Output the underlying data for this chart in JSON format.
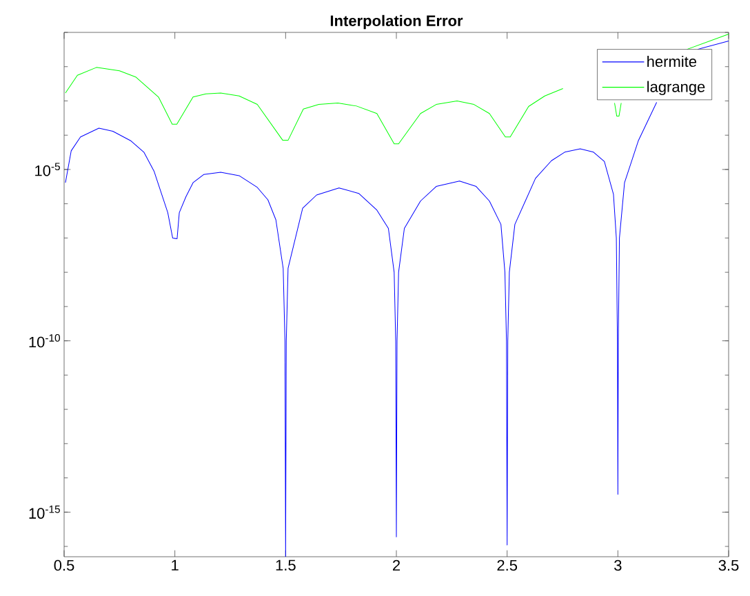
{
  "chart_data": {
    "type": "line",
    "title": "Interpolation Error",
    "log": "y",
    "legend": "top right",
    "xlim": [
      0.5,
      3.5
    ],
    "xticks": [
      0.5,
      1,
      1.5,
      2,
      2.5,
      3,
      3.5
    ],
    "ylim": [
      5e-17,
      0.1
    ],
    "yticks": [
      {
        "value": 1e-15,
        "label": "10$^{-15}$"
      },
      {
        "value": 1e-10,
        "label": "10$^{-10}$"
      },
      {
        "value": 1e-05,
        "label": "10$^{-5}$"
      }
    ],
    "series": [
      {
        "name": "hermite",
        "color": "#0000ff",
        "x": [
          0.506,
          0.532,
          0.574,
          0.657,
          0.72,
          0.802,
          0.86,
          0.906,
          0.968,
          0.99,
          1.01,
          1.02,
          1.05,
          1.082,
          1.13,
          1.207,
          1.29,
          1.372,
          1.42,
          1.456,
          1.489,
          1.497,
          1.5,
          1.503,
          1.511,
          1.577,
          1.64,
          1.741,
          1.83,
          1.912,
          1.964,
          1.99,
          1.997,
          2.0,
          2.003,
          2.01,
          2.036,
          2.109,
          2.18,
          2.285,
          2.36,
          2.42,
          2.472,
          2.49,
          2.497,
          2.5,
          2.503,
          2.51,
          2.535,
          2.628,
          2.7,
          2.76,
          2.83,
          2.89,
          2.939,
          2.98,
          2.993,
          2.998,
          3.0,
          3.002,
          3.007,
          3.03,
          3.092,
          3.175,
          3.25,
          3.36,
          3.5
        ],
        "values": [
          4.1e-06,
          3.5e-05,
          8.9e-05,
          0.00016,
          0.00013,
          6.8e-05,
          3.2e-05,
          8.9e-06,
          5.5e-07,
          1e-07,
          9.5e-08,
          5.5e-07,
          1.6e-06,
          4.1e-06,
          7.1e-06,
          8.3e-06,
          6.6e-06,
          3e-06,
          1.3e-06,
          3.4e-07,
          1.3e-08,
          1e-10,
          5e-17,
          1e-10,
          1.3e-08,
          7.4e-07,
          1.8e-06,
          2.9e-06,
          2e-06,
          6.5e-07,
          1.9e-07,
          1e-08,
          1e-10,
          1.9e-16,
          1e-10,
          1e-08,
          1.9e-07,
          1.2e-06,
          3.2e-06,
          4.6e-06,
          3.2e-06,
          1.2e-06,
          2.5e-07,
          1e-08,
          1e-10,
          1.1e-16,
          1e-10,
          1e-08,
          2.5e-07,
          5.5e-06,
          1.8e-05,
          3.2e-05,
          4e-05,
          3.2e-05,
          1.7e-05,
          1.9e-06,
          1e-07,
          1e-10,
          3.3e-15,
          1e-10,
          1e-07,
          4.1e-06,
          6.8e-05,
          0.00091,
          null,
          0.032,
          0.056
        ]
      },
      {
        "name": "lagrange",
        "color": "#00ff00",
        "x": [
          0.506,
          0.56,
          0.646,
          0.75,
          0.823,
          0.926,
          0.988,
          1.009,
          1.082,
          1.14,
          1.207,
          1.29,
          1.372,
          1.487,
          1.511,
          1.58,
          1.65,
          1.736,
          1.82,
          1.912,
          1.99,
          2.01,
          2.109,
          2.18,
          2.274,
          2.35,
          2.42,
          2.492,
          2.514,
          2.597,
          2.67,
          2.752,
          2.87,
          2.985,
          2.995,
          3.005,
          3.015,
          3.15,
          3.312,
          3.5
        ],
        "values": [
          0.0017,
          0.0056,
          0.0095,
          0.0076,
          0.005,
          0.0013,
          0.00021,
          0.00021,
          0.0013,
          0.0016,
          0.0017,
          0.0014,
          0.00079,
          7.1e-05,
          7.1e-05,
          0.00058,
          0.00079,
          0.00087,
          0.00071,
          0.00043,
          5.6e-05,
          5.6e-05,
          0.00043,
          0.00079,
          0.001,
          0.00079,
          0.00043,
          8.9e-05,
          8.9e-05,
          0.00069,
          0.0014,
          0.0023,
          null,
          0.00087,
          0.00036,
          0.00036,
          0.00087,
          null,
          0.032,
          0.089
        ]
      }
    ]
  }
}
